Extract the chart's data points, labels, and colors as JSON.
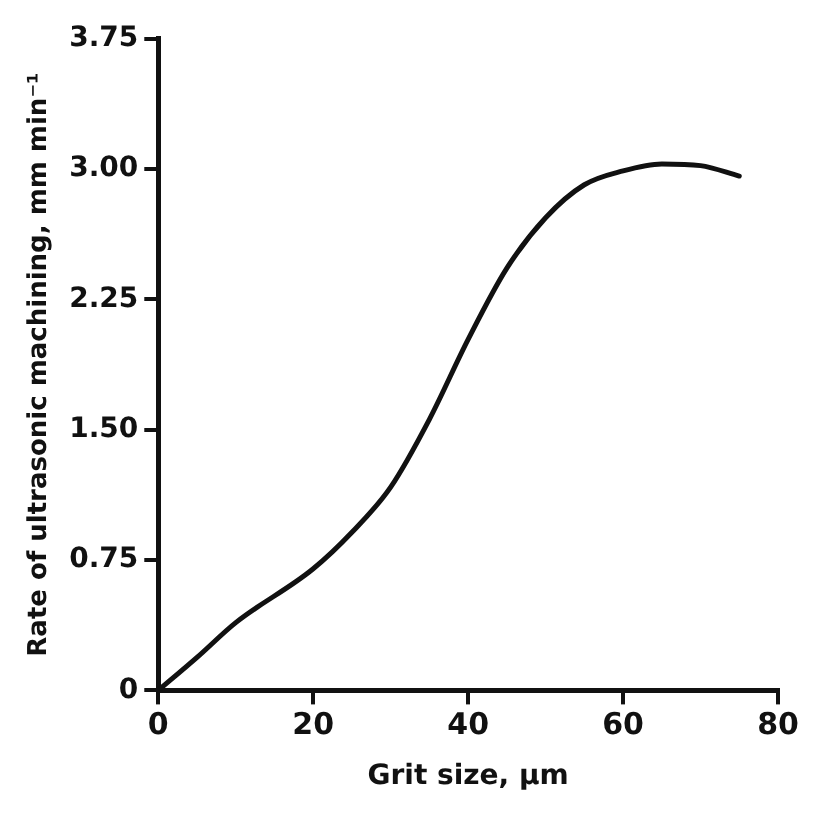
{
  "chart_data": {
    "type": "line",
    "xlabel": "Grit size, μm",
    "ylabel": "Rate of ultrasonic machining, mm min⁻¹",
    "series": [
      {
        "color": "#111111",
        "x": [
          0,
          5,
          10,
          20,
          25,
          30,
          35,
          40,
          45,
          50,
          55,
          60,
          65,
          70,
          75
        ],
        "values": [
          0,
          0.19,
          0.39,
          0.7,
          0.91,
          1.17,
          1.56,
          2.02,
          2.43,
          2.72,
          2.91,
          2.99,
          3.03,
          3.02,
          2.96
        ]
      }
    ],
    "xlim": [
      0,
      80
    ],
    "xticks": [
      0,
      20,
      40,
      60,
      80
    ],
    "ylim": [
      0,
      3.75
    ],
    "yticks": [
      0,
      0.75,
      {
        "value": 1.5,
        "label": "1.50"
      },
      2.25,
      {
        "value": 3,
        "label": "3.00"
      },
      3.75
    ],
    "grid": false,
    "legend": false,
    "marker": "none",
    "line_style": "solid"
  }
}
